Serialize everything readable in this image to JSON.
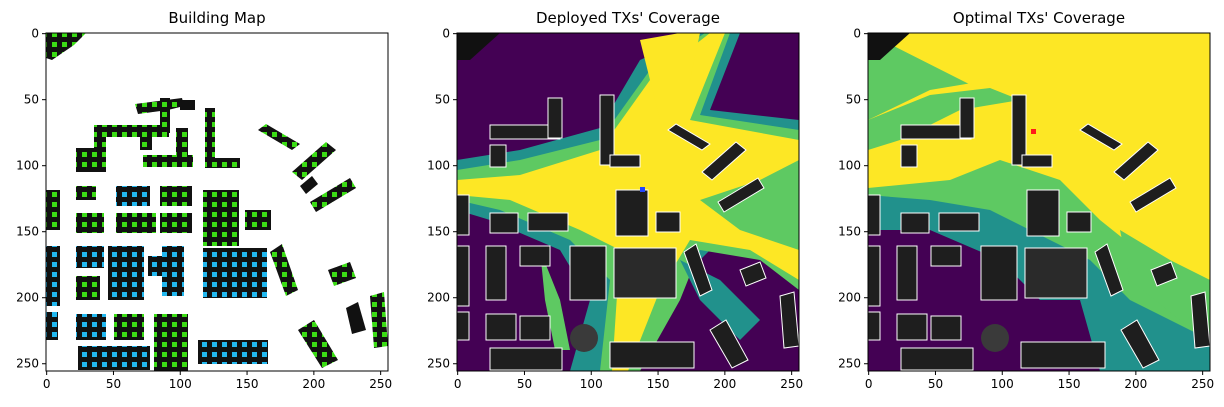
{
  "figure": {
    "colors": {
      "coverage_low": "#440154",
      "coverage_mid_low": "#31688e",
      "coverage_mid": "#21918c",
      "coverage_mid_high": "#5ec962",
      "coverage_high": "#fde725",
      "building": "#111111",
      "building_outline": "#ffffff",
      "tx_deployed": "#2246ff",
      "tx_optimal": "#ff1a1a",
      "tx_candidate": "#3bdc15",
      "tx_candidate_alt": "#22b8ef"
    }
  },
  "chart_data": [
    {
      "type": "heatmap",
      "title": "Building Map",
      "x_ticks": [
        "0",
        "50",
        "100",
        "150",
        "200",
        "250"
      ],
      "y_ticks": [
        "0",
        "50",
        "100",
        "150",
        "200",
        "250"
      ],
      "xlim": [
        0,
        255
      ],
      "ylim": [
        255,
        0
      ],
      "layers": [
        "buildings (black)",
        "candidate TX sites (green/cyan squares)"
      ]
    },
    {
      "type": "heatmap",
      "title": "Deployed TXs' Coverage",
      "x_ticks": [
        "0",
        "50",
        "100",
        "150",
        "200",
        "250"
      ],
      "y_ticks": [
        "0",
        "50",
        "100",
        "150",
        "200",
        "250"
      ],
      "xlim": [
        0,
        255
      ],
      "ylim": [
        255,
        0
      ],
      "transmitter": {
        "x": 138,
        "y": 123,
        "color": "blue"
      }
    },
    {
      "type": "heatmap",
      "title": "Optimal TXs' Coverage",
      "x_ticks": [
        "0",
        "50",
        "100",
        "150",
        "200",
        "250"
      ],
      "y_ticks": [
        "0",
        "50",
        "100",
        "150",
        "200",
        "250"
      ],
      "xlim": [
        0,
        255
      ],
      "ylim": [
        255,
        0
      ],
      "transmitter": {
        "x": 122,
        "y": 75,
        "color": "red"
      }
    }
  ]
}
